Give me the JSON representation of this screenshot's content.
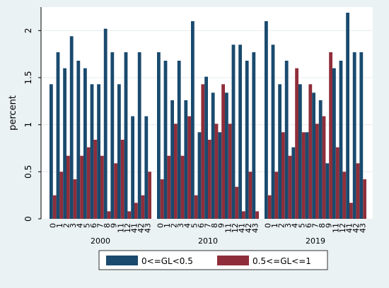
{
  "chart_data": {
    "type": "bar",
    "ylabel": "percent",
    "xlabel": "",
    "ylim": [
      0,
      2.25
    ],
    "yticks": [
      0,
      0.5,
      1,
      1.5,
      2
    ],
    "grid": "horizontal",
    "legend_placement": "bottom",
    "series": [
      {
        "name": "0<=GL<0.5",
        "color": "#1a4a6e"
      },
      {
        "name": "0.5<=GL<=1",
        "color": "#8f2e3a"
      }
    ],
    "groups": [
      {
        "label": "2000",
        "categories": [
          "0",
          "1",
          "2",
          "3",
          "4",
          "5",
          "6",
          "7",
          "8",
          "9",
          "11",
          "12",
          "41",
          "42",
          "43"
        ],
        "values": [
          [
            1.43,
            1.77,
            1.6,
            1.94,
            1.68,
            1.6,
            1.43,
            1.43,
            2.02,
            1.77,
            1.43,
            1.77,
            1.09,
            1.77,
            1.09
          ],
          [
            0.25,
            0.5,
            0.67,
            0.42,
            0.67,
            0.76,
            0.84,
            0.67,
            0.08,
            0.59,
            0.84,
            0.08,
            0.17,
            0.25,
            0.5
          ]
        ]
      },
      {
        "label": "2010",
        "categories": [
          "0",
          "1",
          "2",
          "3",
          "4",
          "5",
          "6",
          "7",
          "8",
          "9",
          "11",
          "12",
          "41",
          "42",
          "43"
        ],
        "values": [
          [
            1.77,
            1.68,
            1.26,
            1.68,
            1.26,
            2.1,
            0.92,
            1.51,
            1.34,
            0.92,
            1.34,
            1.85,
            1.85,
            1.68,
            1.77
          ],
          [
            0.42,
            0.67,
            1.01,
            0.67,
            1.09,
            0.25,
            1.43,
            0.84,
            1.01,
            1.43,
            1.01,
            0.34,
            0.08,
            0.5,
            0.08
          ]
        ]
      },
      {
        "label": "2019",
        "categories": [
          "0",
          "1",
          "2",
          "3",
          "4",
          "5",
          "6",
          "7",
          "8",
          "9",
          "11",
          "12",
          "41",
          "42",
          "43"
        ],
        "values": [
          [
            2.1,
            1.85,
            1.43,
            1.68,
            0.76,
            1.43,
            0.92,
            1.34,
            1.26,
            0.59,
            1.6,
            1.68,
            2.19,
            1.77,
            1.77
          ],
          [
            0.25,
            0.5,
            0.92,
            0.67,
            1.6,
            0.92,
            1.43,
            1.01,
            1.09,
            1.77,
            0.76,
            0.5,
            0.17,
            0.59,
            0.42
          ]
        ]
      }
    ]
  }
}
